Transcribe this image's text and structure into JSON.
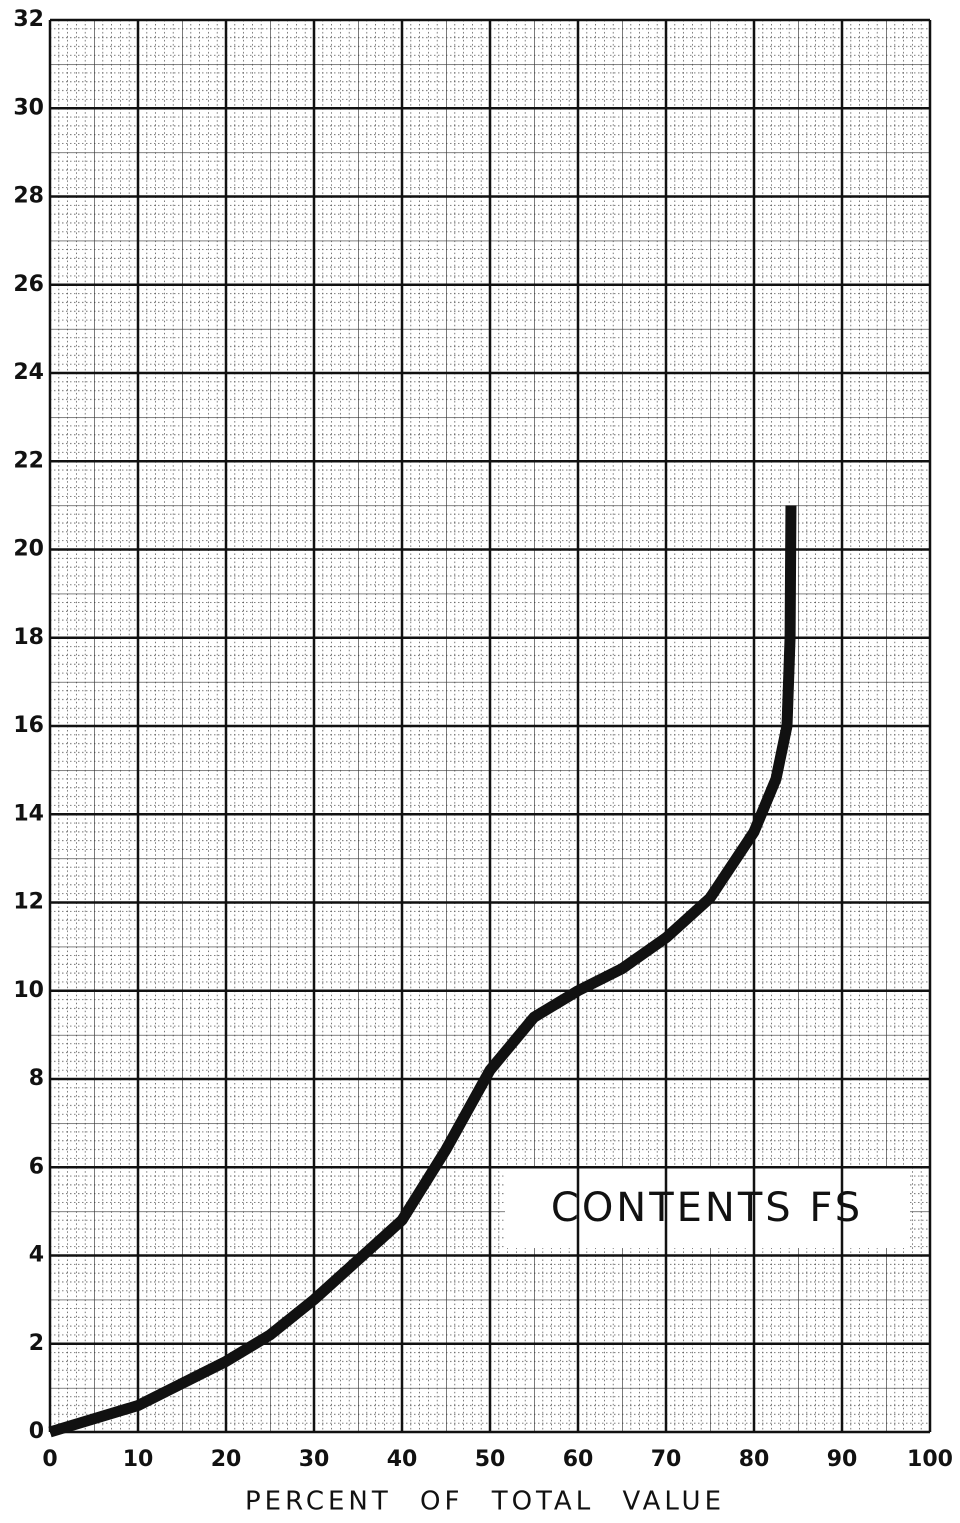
{
  "chart_data": {
    "type": "line",
    "x_label": "PERCENT OF TOTAL VALUE",
    "annotation": "CONTENTS FS",
    "x": [
      0,
      10,
      20,
      25,
      30,
      35,
      40,
      45,
      50,
      55,
      60,
      65,
      70,
      75,
      80,
      82.5,
      83.75,
      84.1,
      84.2
    ],
    "series": [
      {
        "color": "#111111",
        "values": [
          0,
          0.6,
          1.6,
          2.2,
          3.0,
          3.9,
          4.8,
          6.4,
          8.2,
          9.4,
          10.0,
          10.5,
          11.2,
          12.1,
          13.6,
          14.8,
          16,
          18,
          21
        ]
      }
    ],
    "xlim": [
      0,
      100
    ],
    "xticks": [
      0,
      10,
      20,
      30,
      40,
      50,
      60,
      70,
      80,
      90,
      100
    ],
    "ylim": [
      0,
      32
    ],
    "yticks": [
      0,
      2,
      4,
      6,
      8,
      10,
      12,
      14,
      16,
      18,
      20,
      22,
      24,
      26,
      28,
      30,
      32
    ],
    "grid": true
  }
}
